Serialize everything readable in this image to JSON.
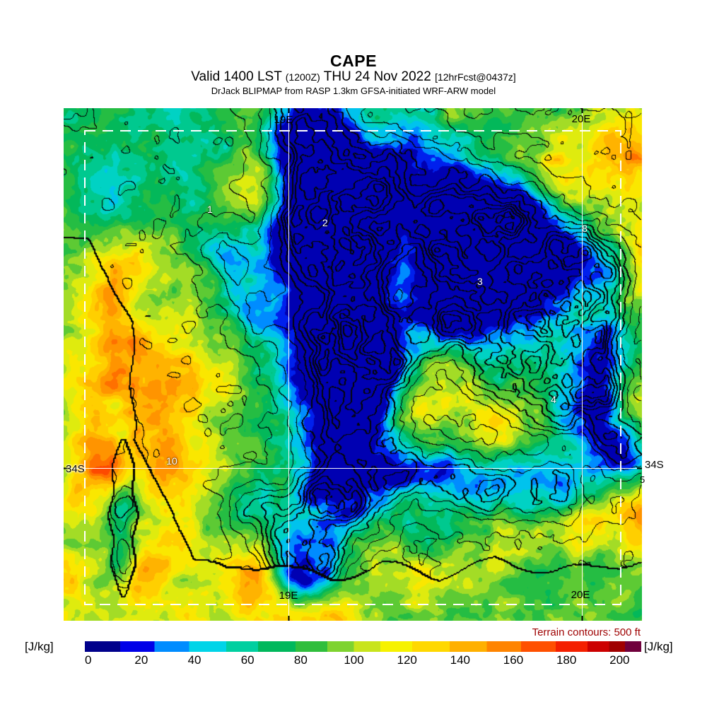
{
  "header": {
    "title": "CAPE",
    "valid_prefix": "Valid 1400 LST",
    "valid_zulu": "(1200Z)",
    "valid_date": "THU 24 Nov 2022",
    "fcst_tag": "[12hrFcst@0437z]",
    "model_line": "DrJack BLIPMAP from RASP 1.3km GFSA-initiated WRF-ARW model"
  },
  "map": {
    "edge_labels": {
      "top_meridian_19e": "19E",
      "top_meridian_20e": "20E",
      "bottom_meridian_19e": "19E",
      "bottom_meridian_20e": "20E",
      "left_parallel_34s": "34S",
      "right_parallel_34s": "34S",
      "right_edge_site": "5"
    },
    "graticule": {
      "meridians": [
        {
          "label": "19E",
          "x": 0.389
        },
        {
          "label": "20E",
          "x": 0.896
        }
      ],
      "parallels": [
        {
          "label": "34S",
          "y": 0.702
        }
      ]
    },
    "site_markers": [
      {
        "label": "1",
        "x": 0.253,
        "y": 0.197
      },
      {
        "label": "2",
        "x": 0.452,
        "y": 0.223
      },
      {
        "label": "8",
        "x": 0.901,
        "y": 0.234
      },
      {
        "label": "3",
        "x": 0.72,
        "y": 0.338
      },
      {
        "label": "4",
        "x": 0.847,
        "y": 0.568
      },
      {
        "label": "10",
        "x": 0.187,
        "y": 0.688
      }
    ]
  },
  "footer": {
    "terrain_note": "Terrain contours: 500 ft",
    "units_left": "[J/kg]",
    "units_right": "[J/kg]"
  },
  "chart_data": {
    "type": "heatmap",
    "title": "CAPE",
    "units": "J/kg",
    "valid": "1400 LST (1200Z) THU 24 Nov 2022",
    "forecast": "12hrFcst@0437z",
    "model": "RASP 1.3km GFSA-initiated WRF-ARW",
    "terrain_contour_interval": "500 ft",
    "extent": {
      "meridians": [
        "19E",
        "20E"
      ],
      "parallels": [
        "34S"
      ]
    },
    "colorbar": {
      "orientation": "horizontal",
      "ticks": [
        0,
        20,
        40,
        60,
        80,
        100,
        120,
        140,
        160,
        180,
        200
      ],
      "stops": [
        {
          "v": 0,
          "c": "#00008b"
        },
        {
          "v": 12,
          "c": "#0000e8"
        },
        {
          "v": 25,
          "c": "#008cff"
        },
        {
          "v": 38,
          "c": "#00d4e8"
        },
        {
          "v": 52,
          "c": "#00cfa0"
        },
        {
          "v": 64,
          "c": "#00b85c"
        },
        {
          "v": 78,
          "c": "#2fbe3c"
        },
        {
          "v": 90,
          "c": "#7ed32f"
        },
        {
          "v": 100,
          "c": "#c8e41c"
        },
        {
          "v": 110,
          "c": "#f6f200"
        },
        {
          "v": 122,
          "c": "#ffd800"
        },
        {
          "v": 136,
          "c": "#ffb000"
        },
        {
          "v": 150,
          "c": "#ff8400"
        },
        {
          "v": 163,
          "c": "#ff5000"
        },
        {
          "v": 176,
          "c": "#f42000"
        },
        {
          "v": 188,
          "c": "#cc0000"
        },
        {
          "v": 196,
          "c": "#a00000"
        },
        {
          "v": 202,
          "c": "#70003c"
        }
      ]
    },
    "grid": {
      "note": "Approximate CAPE values (J/kg) sampled on a 13x11 lon-lat grid over the plotted domain, read from the color field.",
      "nx": 13,
      "ny": 11,
      "values": [
        [
          70,
          70,
          60,
          70,
          90,
          75,
          70,
          60,
          75,
          80,
          70,
          100,
          110
        ],
        [
          55,
          50,
          70,
          75,
          105,
          35,
          40,
          70,
          65,
          75,
          130,
          110,
          140
        ],
        [
          70,
          45,
          75,
          70,
          100,
          40,
          25,
          60,
          30,
          25,
          60,
          100,
          110
        ],
        [
          100,
          130,
          80,
          70,
          65,
          20,
          40,
          95,
          30,
          20,
          60,
          105,
          135
        ],
        [
          75,
          140,
          100,
          75,
          70,
          40,
          25,
          65,
          45,
          70,
          110,
          130,
          100
        ],
        [
          110,
          150,
          135,
          105,
          75,
          45,
          25,
          100,
          130,
          140,
          160,
          70,
          95
        ],
        [
          105,
          170,
          150,
          110,
          80,
          70,
          50,
          100,
          110,
          130,
          135,
          75,
          130
        ],
        [
          110,
          165,
          145,
          110,
          80,
          70,
          65,
          75,
          70,
          85,
          75,
          55,
          70
        ],
        [
          105,
          110,
          100,
          80,
          105,
          130,
          110,
          70,
          60,
          100,
          105,
          120,
          140
        ],
        [
          110,
          105,
          125,
          110,
          130,
          110,
          105,
          100,
          85,
          100,
          80,
          70,
          95
        ],
        [
          110,
          110,
          105,
          110,
          105,
          100,
          110,
          90,
          85,
          80,
          75,
          80,
          85
        ]
      ]
    }
  }
}
